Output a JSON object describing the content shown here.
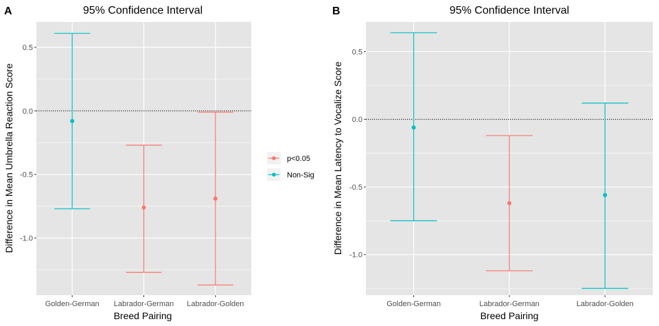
{
  "colors": {
    "sig": "#f8766d",
    "nonsig": "#00bfc4",
    "panel_bg": "#e5e5e5",
    "grid": "#ffffff"
  },
  "legend": {
    "items": [
      {
        "label": "p<0.05",
        "key": "sig"
      },
      {
        "label": "Non-Sig",
        "key": "nonsig"
      }
    ]
  },
  "chart_data": [
    {
      "type": "errorbar",
      "panel": "A",
      "title": "95% Confidence Interval",
      "xlabel": "Breed Pairing",
      "ylabel": "Difference in Mean Umbrella Reaction Score",
      "categories": [
        "Golden-German",
        "Labrador-German",
        "Labrador-Golden"
      ],
      "ylim": [
        -1.45,
        0.7
      ],
      "yticks": [
        0.5,
        0.0,
        -0.5,
        -1.0
      ],
      "ytick_labels": [
        "0.5",
        "0.0",
        "-0.5",
        "-1.0"
      ],
      "reference_line": 0,
      "points": [
        {
          "category": "Golden-German",
          "estimate": -0.08,
          "lower": -0.77,
          "upper": 0.61,
          "group": "nonsig"
        },
        {
          "category": "Labrador-German",
          "estimate": -0.76,
          "lower": -1.27,
          "upper": -0.27,
          "group": "sig"
        },
        {
          "category": "Labrador-Golden",
          "estimate": -0.69,
          "lower": -1.37,
          "upper": -0.01,
          "group": "sig"
        }
      ]
    },
    {
      "type": "errorbar",
      "panel": "B",
      "title": "95% Confidence Interval",
      "xlabel": "Breed Pairing",
      "ylabel": "Difference in Mean Latency to Vocalize Score",
      "categories": [
        "Golden-German",
        "Labrador-German",
        "Labrador-Golden"
      ],
      "ylim": [
        -1.3,
        0.72
      ],
      "yticks": [
        0.5,
        0.0,
        -0.5,
        -1.0
      ],
      "ytick_labels": [
        "0.5",
        "0.0",
        "-0.5",
        "-1.0"
      ],
      "reference_line": 0,
      "points": [
        {
          "category": "Golden-German",
          "estimate": -0.06,
          "lower": -0.75,
          "upper": 0.64,
          "group": "nonsig"
        },
        {
          "category": "Labrador-German",
          "estimate": -0.62,
          "lower": -1.12,
          "upper": -0.12,
          "group": "sig"
        },
        {
          "category": "Labrador-Golden",
          "estimate": -0.56,
          "lower": -1.25,
          "upper": 0.12,
          "group": "nonsig"
        }
      ]
    }
  ]
}
